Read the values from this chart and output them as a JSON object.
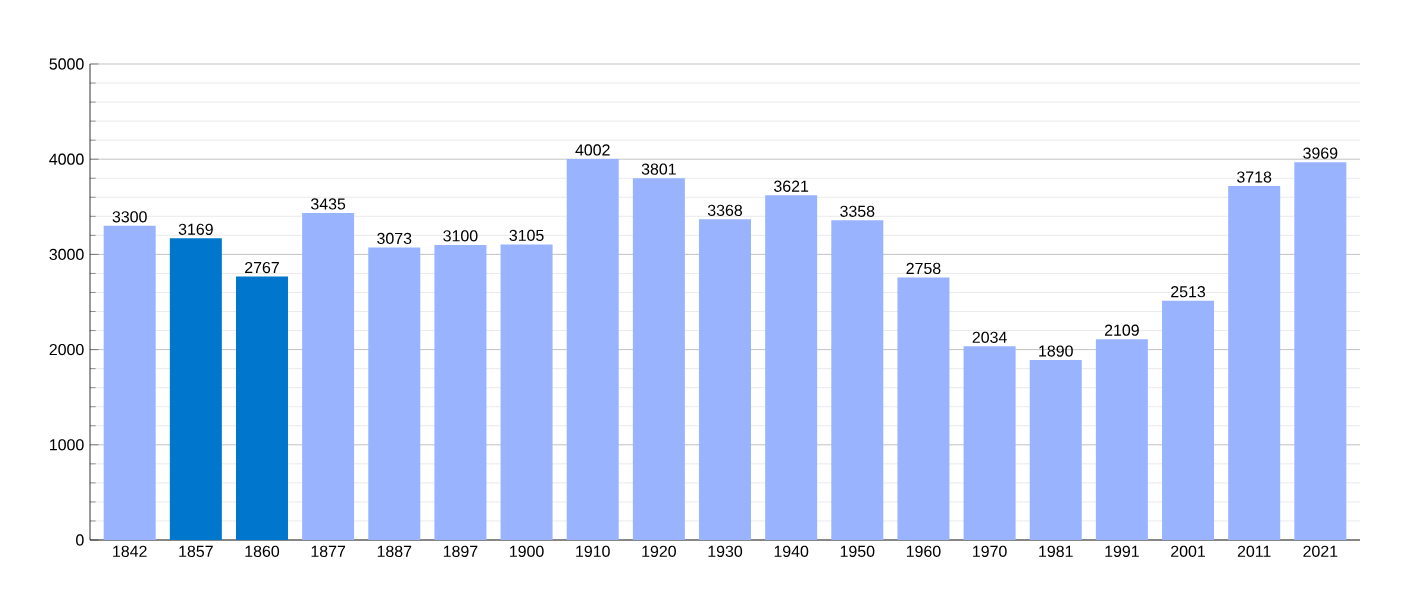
{
  "chart_data": {
    "type": "bar",
    "categories": [
      "1842",
      "1857",
      "1860",
      "1877",
      "1887",
      "1897",
      "1900",
      "1910",
      "1920",
      "1930",
      "1940",
      "1950",
      "1960",
      "1970",
      "1981",
      "1991",
      "2001",
      "2011",
      "2021"
    ],
    "values": [
      3300,
      3169,
      2767,
      3435,
      3073,
      3100,
      3105,
      4002,
      3801,
      3368,
      3621,
      3358,
      2758,
      2034,
      1890,
      2109,
      2513,
      3718,
      3969
    ],
    "colors": [
      "#99b3ff",
      "#0077cc",
      "#0077cc",
      "#99b3ff",
      "#99b3ff",
      "#99b3ff",
      "#99b3ff",
      "#99b3ff",
      "#99b3ff",
      "#99b3ff",
      "#99b3ff",
      "#99b3ff",
      "#99b3ff",
      "#99b3ff",
      "#99b3ff",
      "#99b3ff",
      "#99b3ff",
      "#99b3ff",
      "#99b3ff"
    ],
    "ylim": [
      0,
      5000
    ],
    "yticks": [
      0,
      {
        "value": 200,
        "label": null
      },
      {
        "value": 400,
        "label": null
      },
      {
        "value": 600,
        "label": null
      },
      {
        "value": 800,
        "label": null
      },
      1000,
      {
        "value": 1200,
        "label": null
      },
      {
        "value": 1400,
        "label": null
      },
      {
        "value": 1600,
        "label": null
      },
      {
        "value": 1800,
        "label": null
      },
      2000,
      {
        "value": 2200,
        "label": null
      },
      {
        "value": 2400,
        "label": null
      },
      {
        "value": 2600,
        "label": null
      },
      {
        "value": 2800,
        "label": null
      },
      3000,
      {
        "value": 3200,
        "label": null
      },
      {
        "value": 3400,
        "label": null
      },
      {
        "value": 3600,
        "label": null
      },
      {
        "value": 3800,
        "label": null
      },
      4000,
      {
        "value": 4200,
        "label": null
      },
      {
        "value": 4400,
        "label": null
      },
      {
        "value": 4600,
        "label": null
      },
      {
        "value": 4800,
        "label": null
      },
      5000
    ],
    "grid": "y",
    "data_labels": true
  }
}
